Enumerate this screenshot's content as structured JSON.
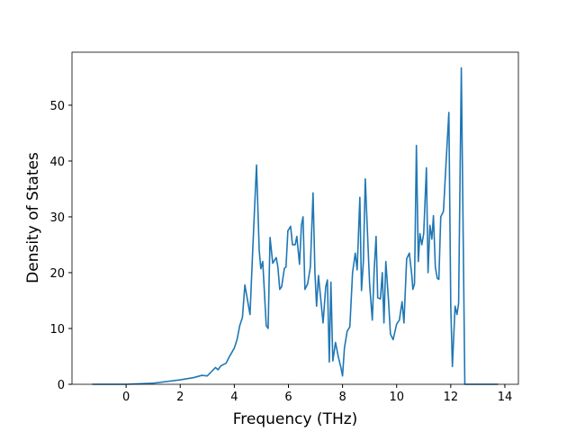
{
  "chart_data": {
    "type": "line",
    "xlabel": "Frequency (THz)",
    "ylabel": "Density of States",
    "x": [
      -1.25,
      0,
      1,
      2,
      2.5,
      2.8,
      3,
      3.2,
      3.3,
      3.4,
      3.5,
      3.7,
      3.8,
      4.0,
      4.1,
      4.2,
      4.3,
      4.39,
      4.58,
      4.68,
      4.82,
      4.92,
      4.98,
      5.05,
      5.18,
      5.25,
      5.32,
      5.42,
      5.55,
      5.61,
      5.68,
      5.75,
      5.85,
      5.91,
      5.98,
      6.08,
      6.15,
      6.25,
      6.31,
      6.41,
      6.48,
      6.54,
      6.61,
      6.71,
      6.81,
      6.91,
      6.98,
      7.04,
      7.11,
      7.21,
      7.28,
      7.38,
      7.44,
      7.51,
      7.57,
      7.64,
      7.74,
      7.84,
      7.94,
      8.0,
      8.07,
      8.17,
      8.27,
      8.37,
      8.47,
      8.54,
      8.64,
      8.7,
      8.77,
      8.84,
      8.94,
      9.0,
      9.1,
      9.17,
      9.24,
      9.3,
      9.4,
      9.47,
      9.53,
      9.6,
      9.7,
      9.77,
      9.87,
      10.0,
      10.1,
      10.2,
      10.27,
      10.37,
      10.47,
      10.56,
      10.6,
      10.66,
      10.73,
      10.8,
      10.86,
      10.93,
      11.0,
      11.1,
      11.16,
      11.23,
      11.3,
      11.36,
      11.43,
      11.5,
      11.56,
      11.63,
      11.73,
      11.83,
      11.93,
      12.0,
      12.06,
      12.16,
      12.23,
      12.29,
      12.39,
      12.52,
      13.75
    ],
    "series": [
      {
        "name": "DOS",
        "color": "#1f77b4",
        "values": [
          0,
          0,
          0.2,
          0.8,
          1.2,
          1.6,
          1.5,
          2.5,
          3,
          2.6,
          3.3,
          3.8,
          4.8,
          6.5,
          8,
          10.5,
          12,
          17.8,
          12.5,
          24,
          39.3,
          24,
          20.7,
          22,
          10.5,
          10,
          26.3,
          21.7,
          22.7,
          21,
          17,
          17.5,
          20.8,
          21,
          27.5,
          28.3,
          25,
          25,
          26.5,
          21.5,
          28.5,
          30,
          17,
          18,
          21,
          34.3,
          20,
          14,
          19.5,
          14.5,
          11,
          17.5,
          18.7,
          4,
          18.3,
          4.2,
          7.5,
          5,
          3,
          1.5,
          6.5,
          9.5,
          10.3,
          20,
          23.5,
          20.5,
          33.5,
          16.8,
          22,
          36.8,
          25,
          18,
          11.5,
          20.5,
          26.5,
          15.5,
          15.3,
          20,
          11,
          22,
          15,
          9,
          8,
          10.8,
          11.5,
          14.8,
          11,
          22.5,
          23.5,
          19.5,
          17,
          18,
          42.8,
          22,
          27,
          25,
          27,
          38.8,
          20,
          28.5,
          26,
          30.2,
          21,
          19,
          18.8,
          30,
          31,
          40,
          48.7,
          14,
          3.2,
          14,
          12.5,
          14.5,
          56.7,
          0,
          0
        ]
      }
    ],
    "xlim": [
      -2,
      14.5
    ],
    "xticks": [
      0,
      2,
      4,
      6,
      8,
      10,
      12,
      14
    ],
    "ylim": [
      0,
      59.5
    ],
    "yticks": [
      0,
      10,
      20,
      30,
      40,
      50
    ]
  }
}
